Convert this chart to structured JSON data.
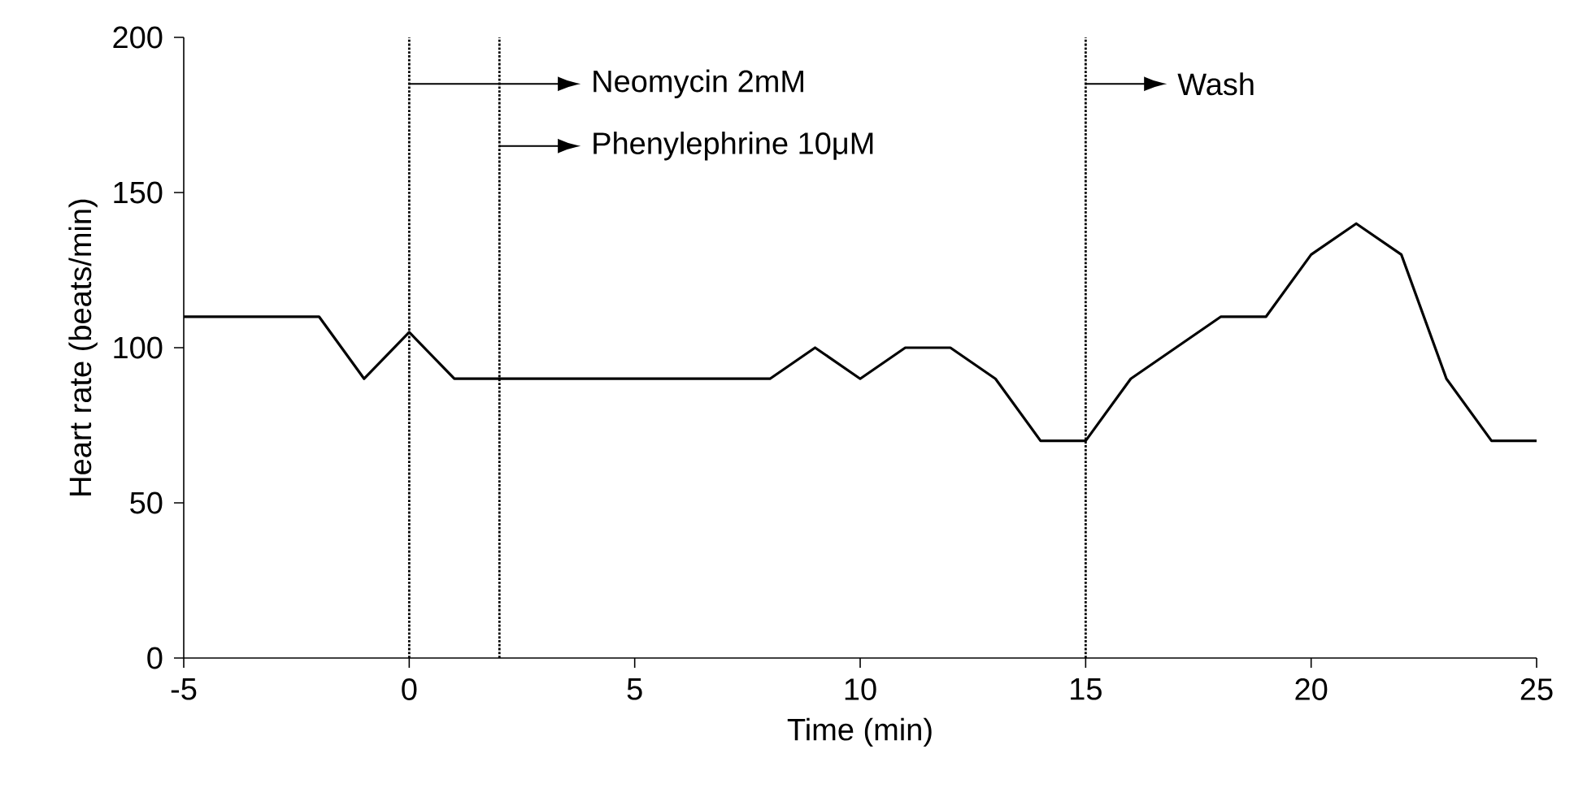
{
  "chart_data": {
    "type": "line",
    "xlabel": "Time (min)",
    "ylabel": "Heart rate (beats/min)",
    "x": [
      -5,
      -2,
      -1,
      0,
      1,
      8,
      9,
      10,
      11,
      12,
      13,
      14,
      15,
      16,
      17,
      18,
      19,
      20,
      21,
      22,
      23,
      24,
      25
    ],
    "values": [
      110,
      110,
      90,
      105,
      90,
      90,
      100,
      90,
      100,
      100,
      90,
      70,
      70,
      90,
      100,
      110,
      110,
      130,
      140,
      130,
      90,
      70,
      70
    ],
    "color": "#000000",
    "xlim": [
      -5,
      25
    ],
    "xticks": [
      -5,
      0,
      5,
      10,
      15,
      20,
      25
    ],
    "ylim": [
      0,
      200
    ],
    "yticks": [
      0,
      50,
      100,
      150,
      200
    ],
    "grid": false,
    "marker": "none",
    "line_style": "solid",
    "ref_lines": [
      {
        "axis": "x",
        "value": 0,
        "label": "Neomycin 2mM",
        "line_style": "dotted"
      },
      {
        "axis": "x",
        "value": 2,
        "label": "Phenylephrine 10μM",
        "line_style": "dotted"
      },
      {
        "axis": "x",
        "value": 15,
        "label": "Wash",
        "line_style": "dotted"
      }
    ]
  }
}
